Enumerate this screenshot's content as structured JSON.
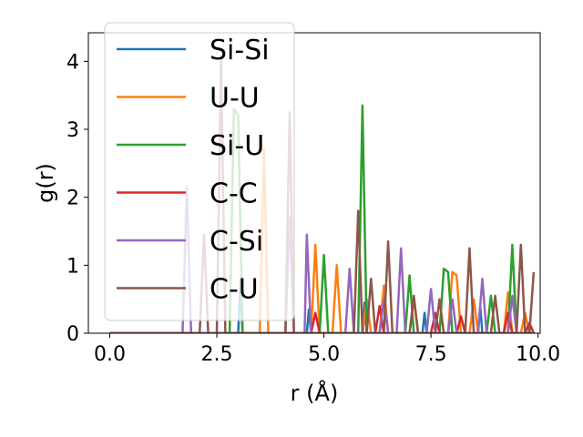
{
  "chart_data": {
    "type": "line",
    "xlabel": "r (Å)",
    "ylabel": "g(r)",
    "xlim": [
      -0.5,
      10.05
    ],
    "ylim": [
      0,
      4.42
    ],
    "xticks": [
      "0.0",
      "2.5",
      "5.0",
      "7.5",
      "10.0"
    ],
    "xtick_values": [
      0,
      2.5,
      5,
      7.5,
      10
    ],
    "yticks": [
      "0",
      "1",
      "2",
      "3",
      "4"
    ],
    "ytick_values": [
      0,
      1,
      2,
      3,
      4
    ],
    "grid": false,
    "legend_position": "top-left",
    "series": [
      {
        "name": "Si-Si",
        "color": "#1f77b4",
        "points": [
          [
            0,
            0
          ],
          [
            3.0,
            0
          ],
          [
            3.05,
            0.8
          ],
          [
            3.1,
            0
          ],
          [
            4.6,
            0
          ],
          [
            4.65,
            0.35
          ],
          [
            4.7,
            0
          ],
          [
            5.9,
            0
          ],
          [
            5.95,
            0.45
          ],
          [
            6.0,
            0
          ],
          [
            7.3,
            0
          ],
          [
            7.35,
            0.3
          ],
          [
            7.4,
            0
          ],
          [
            8.6,
            0
          ],
          [
            8.65,
            0.4
          ],
          [
            8.7,
            0
          ],
          [
            9.9,
            0
          ]
        ]
      },
      {
        "name": "U-U",
        "color": "#ff7f0e",
        "points": [
          [
            0,
            0
          ],
          [
            3.5,
            0
          ],
          [
            3.6,
            2.7
          ],
          [
            3.7,
            0
          ],
          [
            4.7,
            0
          ],
          [
            4.8,
            1.3
          ],
          [
            4.9,
            0
          ],
          [
            5.2,
            0
          ],
          [
            5.3,
            1.0
          ],
          [
            5.4,
            0
          ],
          [
            5.9,
            0
          ],
          [
            6.0,
            0.5
          ],
          [
            6.1,
            0
          ],
          [
            6.3,
            0
          ],
          [
            6.4,
            0.7
          ],
          [
            6.5,
            0
          ],
          [
            7.0,
            0
          ],
          [
            7.1,
            0.5
          ],
          [
            7.2,
            0
          ],
          [
            7.9,
            0
          ],
          [
            8.0,
            0.9
          ],
          [
            8.1,
            0.85
          ],
          [
            8.2,
            0
          ],
          [
            8.4,
            0
          ],
          [
            8.5,
            0.5
          ],
          [
            8.6,
            0
          ],
          [
            9.2,
            0
          ],
          [
            9.3,
            0.6
          ],
          [
            9.4,
            0
          ],
          [
            9.6,
            0
          ],
          [
            9.7,
            0.3
          ],
          [
            9.8,
            0
          ],
          [
            9.9,
            0
          ]
        ]
      },
      {
        "name": "Si-U",
        "color": "#2ca02c",
        "points": [
          [
            0,
            0
          ],
          [
            2.8,
            0
          ],
          [
            2.9,
            3.3
          ],
          [
            3.0,
            3.2
          ],
          [
            3.1,
            0
          ],
          [
            4.9,
            0
          ],
          [
            5.0,
            1.15
          ],
          [
            5.1,
            0
          ],
          [
            5.8,
            0
          ],
          [
            5.9,
            3.35
          ],
          [
            6.0,
            0
          ],
          [
            6.9,
            0
          ],
          [
            7.0,
            0.85
          ],
          [
            7.1,
            0
          ],
          [
            7.7,
            0
          ],
          [
            7.8,
            0.95
          ],
          [
            7.9,
            0.9
          ],
          [
            8.0,
            0
          ],
          [
            8.8,
            0
          ],
          [
            8.9,
            0.55
          ],
          [
            9.0,
            0
          ],
          [
            9.3,
            0
          ],
          [
            9.4,
            1.3
          ],
          [
            9.5,
            0
          ],
          [
            9.9,
            0
          ]
        ]
      },
      {
        "name": "C-C",
        "color": "#d62728",
        "points": [
          [
            0,
            0
          ],
          [
            4.7,
            0
          ],
          [
            4.8,
            0.3
          ],
          [
            4.9,
            0
          ],
          [
            6.2,
            0
          ],
          [
            6.3,
            0.4
          ],
          [
            6.4,
            0
          ],
          [
            7.5,
            0
          ],
          [
            7.6,
            0.3
          ],
          [
            7.7,
            0
          ],
          [
            8.1,
            0
          ],
          [
            8.2,
            0.25
          ],
          [
            8.3,
            0
          ],
          [
            9.2,
            0
          ],
          [
            9.3,
            0.3
          ],
          [
            9.4,
            0
          ],
          [
            9.7,
            0
          ],
          [
            9.8,
            0.15
          ],
          [
            9.9,
            0
          ]
        ]
      },
      {
        "name": "C-Si",
        "color": "#9467bd",
        "points": [
          [
            0,
            0
          ],
          [
            1.7,
            0
          ],
          [
            1.8,
            2.15
          ],
          [
            1.9,
            0
          ],
          [
            4.1,
            0
          ],
          [
            4.2,
            1.7
          ],
          [
            4.3,
            0
          ],
          [
            4.55,
            0
          ],
          [
            4.6,
            1.45
          ],
          [
            4.7,
            0
          ],
          [
            5.5,
            0
          ],
          [
            5.6,
            0.95
          ],
          [
            5.7,
            0
          ],
          [
            6.3,
            0
          ],
          [
            6.4,
            0.5
          ],
          [
            6.5,
            0
          ],
          [
            6.7,
            0
          ],
          [
            6.8,
            1.25
          ],
          [
            6.9,
            0
          ],
          [
            7.4,
            0
          ],
          [
            7.5,
            0.65
          ],
          [
            7.6,
            0
          ],
          [
            7.9,
            0
          ],
          [
            8.0,
            0.5
          ],
          [
            8.1,
            0
          ],
          [
            8.6,
            0
          ],
          [
            8.7,
            0.8
          ],
          [
            8.8,
            0
          ],
          [
            9.3,
            0
          ],
          [
            9.4,
            0.55
          ],
          [
            9.5,
            0
          ],
          [
            9.9,
            0
          ]
        ]
      },
      {
        "name": "C-U",
        "color": "#8c564b",
        "points": [
          [
            0,
            0
          ],
          [
            2.1,
            0
          ],
          [
            2.2,
            1.45
          ],
          [
            2.3,
            0
          ],
          [
            2.5,
            0
          ],
          [
            2.6,
            4.05
          ],
          [
            2.7,
            0
          ],
          [
            4.1,
            0
          ],
          [
            4.2,
            3.25
          ],
          [
            4.3,
            0
          ],
          [
            5.7,
            0
          ],
          [
            5.8,
            1.8
          ],
          [
            5.9,
            0
          ],
          [
            6.0,
            0
          ],
          [
            6.1,
            0.8
          ],
          [
            6.2,
            0
          ],
          [
            6.4,
            0
          ],
          [
            6.5,
            1.35
          ],
          [
            6.6,
            0
          ],
          [
            7.0,
            0
          ],
          [
            7.1,
            0.55
          ],
          [
            7.2,
            0
          ],
          [
            7.6,
            0
          ],
          [
            7.7,
            0.5
          ],
          [
            7.8,
            0
          ],
          [
            8.3,
            0
          ],
          [
            8.4,
            1.25
          ],
          [
            8.5,
            0
          ],
          [
            8.9,
            0
          ],
          [
            9.0,
            0.55
          ],
          [
            9.1,
            0
          ],
          [
            9.5,
            0
          ],
          [
            9.6,
            1.3
          ],
          [
            9.7,
            0
          ],
          [
            9.8,
            0
          ],
          [
            9.9,
            0.9
          ]
        ]
      }
    ]
  }
}
